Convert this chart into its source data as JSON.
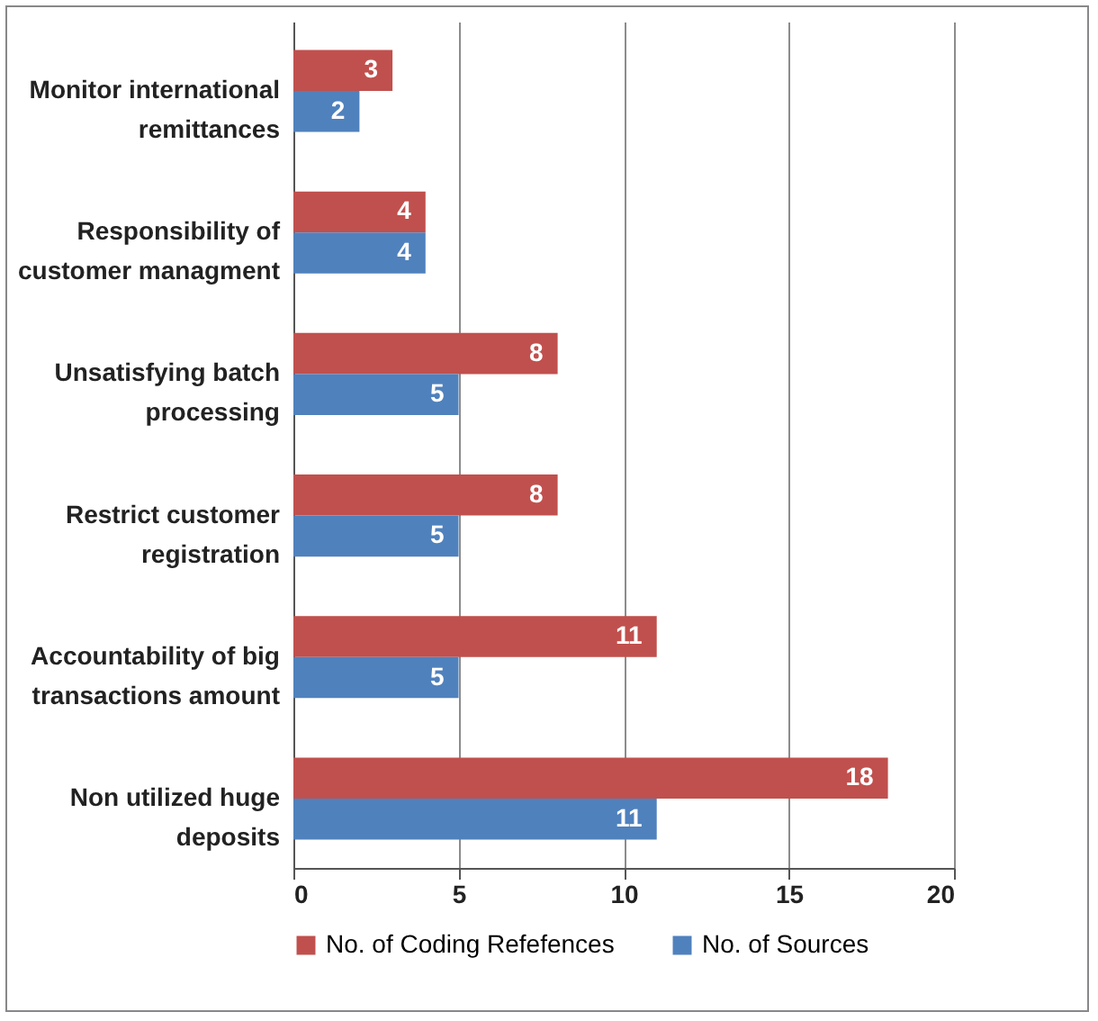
{
  "chart_data": {
    "type": "bar",
    "orientation": "horizontal",
    "categories": [
      "Monitor international remittances",
      "Responsibility of customer managment",
      "Unsatisfying batch processing",
      "Restrict customer registration",
      "Accountability of big transactions amount",
      "Non utilized huge deposits"
    ],
    "series": [
      {
        "name": "No. of Coding Refefences",
        "color": "#c0504d",
        "values": [
          3,
          4,
          8,
          8,
          11,
          18
        ]
      },
      {
        "name": "No. of Sources",
        "color": "#4f81bd",
        "values": [
          2,
          4,
          5,
          5,
          5,
          11
        ]
      }
    ],
    "xlim": [
      0,
      20
    ],
    "xticks": [
      0,
      5,
      10,
      15,
      20
    ],
    "grid": "x",
    "legend": "bottom",
    "data_labels": true
  }
}
